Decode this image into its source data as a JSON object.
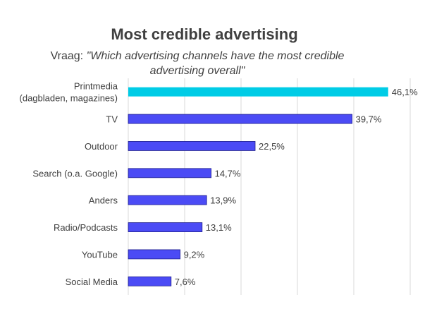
{
  "chart_data": {
    "type": "bar",
    "orientation": "horizontal",
    "title": "Most credible advertising",
    "subtitle_prefix": "Vraag: ",
    "subtitle_question": "\"Which advertising channels have the most credible advertising overall\"",
    "categories": [
      "Printmedia (dagbladen, magazines)",
      "TV",
      "Outdoor",
      "Search (o.a. Google)",
      "Anders",
      "Radio/Podcasts",
      "YouTube",
      "Social Media"
    ],
    "category_lines": [
      [
        "Printmedia",
        "(dagbladen, magazines)"
      ],
      [
        "TV"
      ],
      [
        "Outdoor"
      ],
      [
        "Search (o.a. Google)"
      ],
      [
        "Anders"
      ],
      [
        "Radio/Podcasts"
      ],
      [
        "YouTube"
      ],
      [
        "Social Media"
      ]
    ],
    "values": [
      46.1,
      39.7,
      22.5,
      14.7,
      13.9,
      13.1,
      9.2,
      7.6
    ],
    "value_labels": [
      "46,1%",
      "39,7%",
      "22,5%",
      "14,7%",
      "13,9%",
      "13,1%",
      "9,2%",
      "7,6%"
    ],
    "xlim": [
      0,
      50
    ],
    "grid": true,
    "legend": "none",
    "colors": {
      "highlight": "#00CCE6",
      "bar": "#4B4BF5",
      "bar_edge": "#1E1E8C",
      "grid": "#D9D9D9",
      "text": "#404040"
    },
    "highlight_index": 0
  }
}
